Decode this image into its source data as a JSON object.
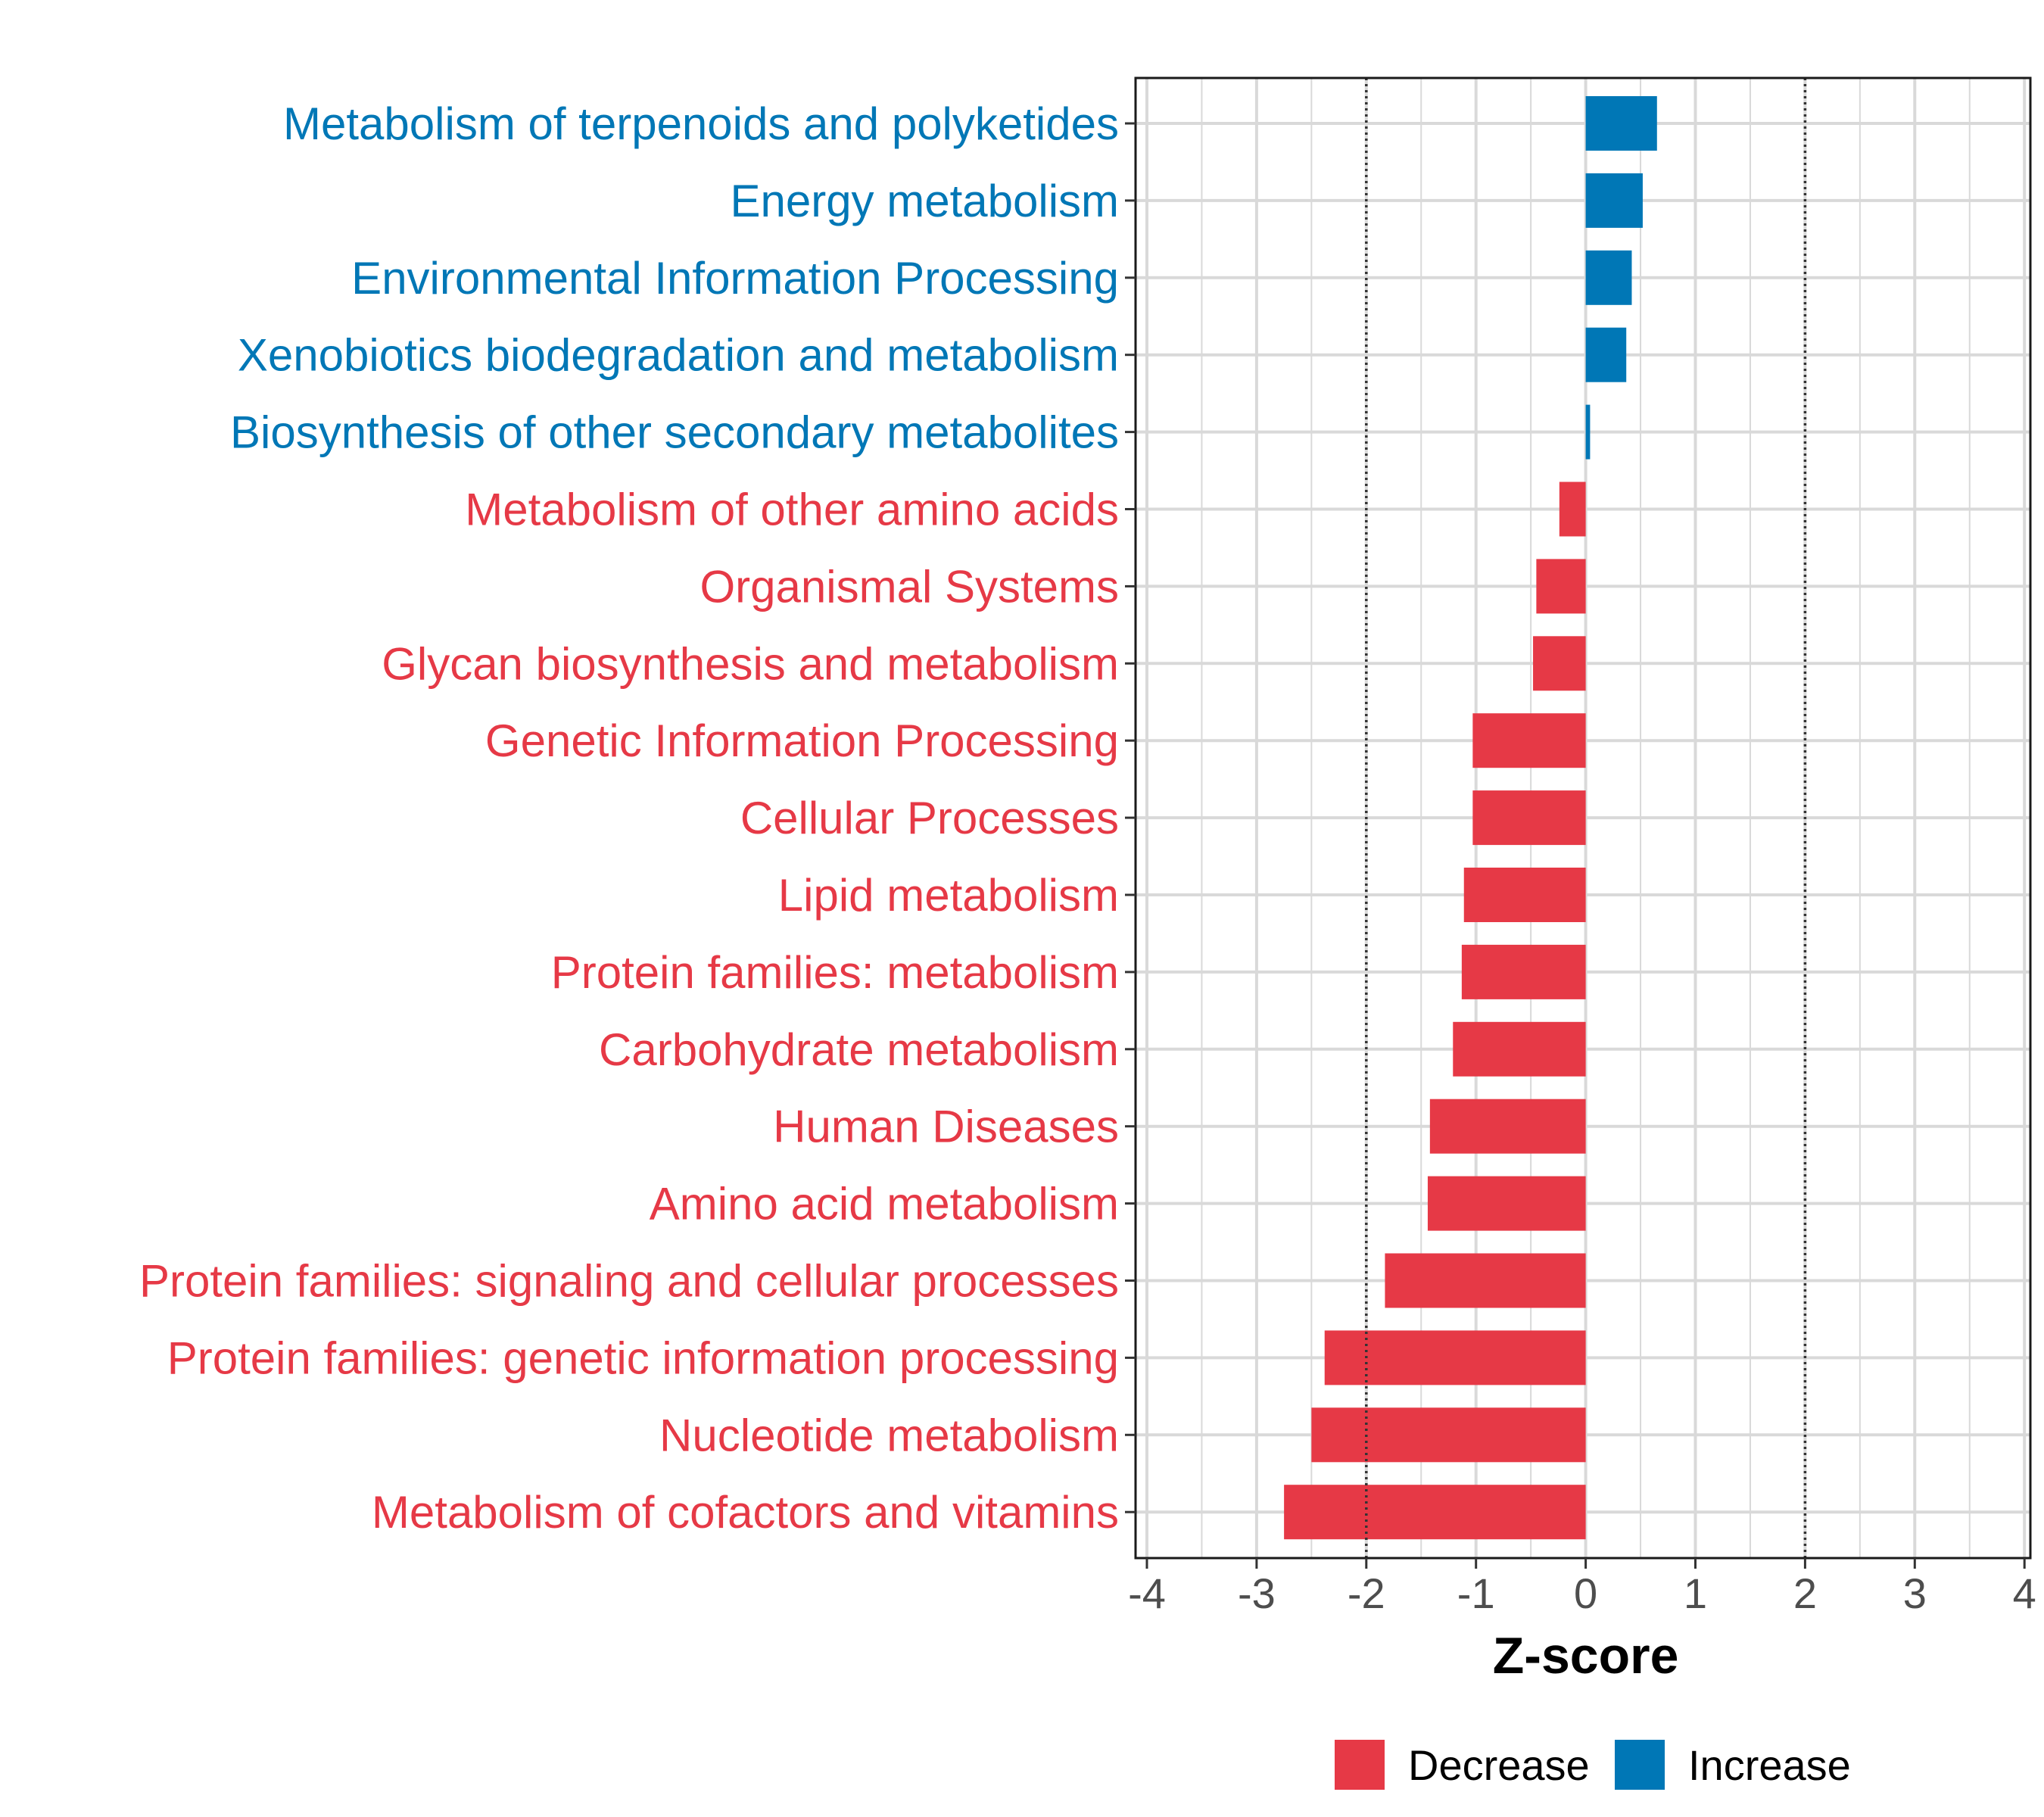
{
  "chart_data": {
    "type": "bar",
    "orientation": "horizontal",
    "title": "",
    "xlabel": "Z-score",
    "ylabel": "",
    "xlim": [
      -4,
      4
    ],
    "xticks": [
      -4,
      -3,
      -2,
      -1,
      0,
      1,
      2,
      3,
      4
    ],
    "tick_labels": [
      "-4",
      "-3",
      "-2",
      "-1",
      "0",
      "1",
      "2",
      "3",
      "4"
    ],
    "reference_lines": [
      -2,
      2
    ],
    "grid": true,
    "legend_position": "bottom",
    "colors": {
      "Decrease": "#e63946",
      "Increase": "#0077b6"
    },
    "legend": [
      {
        "name": "Decrease",
        "color": "#e63946"
      },
      {
        "name": "Increase",
        "color": "#0077b6"
      }
    ],
    "categories": [
      "Metabolism of terpenoids and polyketides",
      "Energy metabolism",
      "Environmental Information Processing",
      "Xenobiotics biodegradation and metabolism",
      "Biosynthesis of other secondary metabolites",
      "Metabolism of other amino acids",
      "Organismal Systems",
      "Glycan biosynthesis and metabolism",
      "Genetic Information Processing",
      "Cellular Processes",
      "Lipid metabolism",
      "Protein families: metabolism",
      "Carbohydrate metabolism",
      "Human Diseases",
      "Amino acid metabolism",
      "Protein families: signaling and cellular processes",
      "Protein families: genetic information processing",
      "Nucleotide metabolism",
      "Metabolism of cofactors and vitamins"
    ],
    "values": [
      0.65,
      0.52,
      0.42,
      0.37,
      0.04,
      -0.24,
      -0.45,
      -0.48,
      -1.03,
      -1.03,
      -1.11,
      -1.13,
      -1.21,
      -1.42,
      -1.44,
      -1.83,
      -2.38,
      -2.5,
      -2.75
    ],
    "groups": [
      "Increase",
      "Increase",
      "Increase",
      "Increase",
      "Increase",
      "Decrease",
      "Decrease",
      "Decrease",
      "Decrease",
      "Decrease",
      "Decrease",
      "Decrease",
      "Decrease",
      "Decrease",
      "Decrease",
      "Decrease",
      "Decrease",
      "Decrease",
      "Decrease"
    ]
  }
}
